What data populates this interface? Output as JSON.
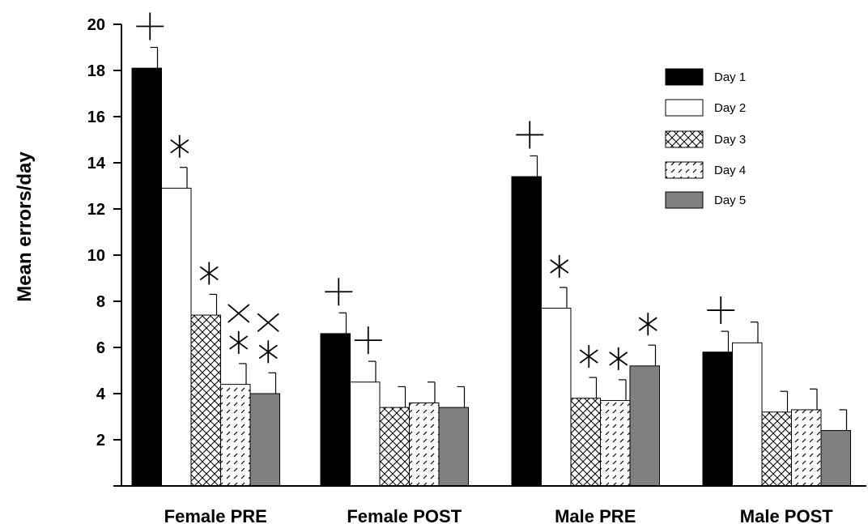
{
  "chart_data": {
    "type": "bar",
    "title": "",
    "xlabel": "",
    "ylabel": "Mean errors/day",
    "ylim": [
      0,
      20
    ],
    "yticks": [
      2,
      4,
      6,
      8,
      10,
      12,
      14,
      16,
      18,
      20
    ],
    "grid": false,
    "legend_position": "top-right",
    "categories": [
      "Female PRE",
      "Female POST",
      "Male PRE",
      "Male POST"
    ],
    "series": [
      {
        "name": "Day 1",
        "fill": "#000000",
        "pattern": "solid",
        "values": [
          18.1,
          6.6,
          13.4,
          5.8
        ],
        "errors": [
          0.9,
          0.9,
          0.9,
          0.9
        ]
      },
      {
        "name": "Day 2",
        "fill": "#ffffff",
        "pattern": "solid",
        "values": [
          12.9,
          4.5,
          7.7,
          6.2
        ],
        "errors": [
          0.9,
          0.9,
          0.9,
          0.9
        ]
      },
      {
        "name": "Day 3",
        "fill": "#ffffff",
        "pattern": "crosshatch",
        "values": [
          7.4,
          3.4,
          3.8,
          3.2
        ],
        "errors": [
          0.9,
          0.9,
          0.9,
          0.9
        ]
      },
      {
        "name": "Day 4",
        "fill": "#ffffff",
        "pattern": "dashed-diagonal",
        "values": [
          4.4,
          3.6,
          3.7,
          3.3
        ],
        "errors": [
          0.9,
          0.9,
          0.9,
          0.9
        ]
      },
      {
        "name": "Day 5",
        "fill": "#808080",
        "pattern": "solid",
        "values": [
          4.0,
          3.4,
          5.2,
          2.4
        ],
        "errors": [
          0.9,
          0.9,
          0.9,
          0.9
        ]
      }
    ],
    "annotations": [
      {
        "category": 0,
        "series": 0,
        "symbols": [
          "plus"
        ]
      },
      {
        "category": 0,
        "series": 1,
        "symbols": [
          "asterisk"
        ]
      },
      {
        "category": 0,
        "series": 2,
        "symbols": [
          "asterisk"
        ]
      },
      {
        "category": 0,
        "series": 3,
        "symbols": [
          "cross",
          "asterisk"
        ]
      },
      {
        "category": 0,
        "series": 4,
        "symbols": [
          "cross",
          "asterisk"
        ]
      },
      {
        "category": 1,
        "series": 0,
        "symbols": [
          "plus"
        ]
      },
      {
        "category": 1,
        "series": 1,
        "symbols": [
          "plus"
        ]
      },
      {
        "category": 2,
        "series": 0,
        "symbols": [
          "plus"
        ]
      },
      {
        "category": 2,
        "series": 1,
        "symbols": [
          "asterisk"
        ]
      },
      {
        "category": 2,
        "series": 2,
        "symbols": [
          "asterisk"
        ]
      },
      {
        "category": 2,
        "series": 3,
        "symbols": [
          "asterisk"
        ]
      },
      {
        "category": 2,
        "series": 4,
        "symbols": [
          "asterisk"
        ]
      },
      {
        "category": 3,
        "series": 0,
        "symbols": [
          "plus"
        ]
      }
    ]
  }
}
